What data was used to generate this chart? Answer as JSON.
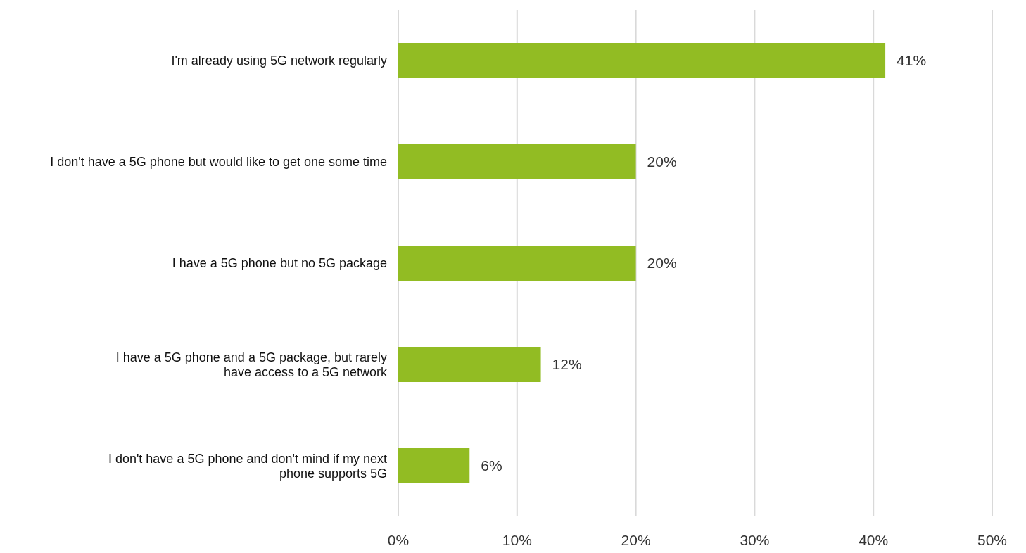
{
  "chart_data": {
    "type": "bar",
    "orientation": "horizontal",
    "categories": [
      "I'm already using 5G network regularly",
      "I don't have a 5G phone but would like to get one some time",
      "I have a 5G phone but no 5G package",
      "I have a 5G phone and a 5G package, but rarely\nhave access to a 5G network",
      "I don't have a 5G phone and don't mind if my next\nphone supports 5G"
    ],
    "values": [
      41,
      20,
      20,
      12,
      6
    ],
    "value_labels": [
      "41%",
      "20%",
      "20%",
      "12%",
      "6%"
    ],
    "color": "#92bc23",
    "xlim": [
      0,
      50
    ],
    "xticks": [
      {
        "value": 0,
        "label": "0%"
      },
      {
        "value": 10,
        "label": "10%"
      },
      {
        "value": 20,
        "label": "20%"
      },
      {
        "value": 30,
        "label": "30%"
      },
      {
        "value": 40,
        "label": "40%"
      },
      {
        "value": 50,
        "label": "50%"
      }
    ],
    "grid": "x",
    "legend": false
  }
}
